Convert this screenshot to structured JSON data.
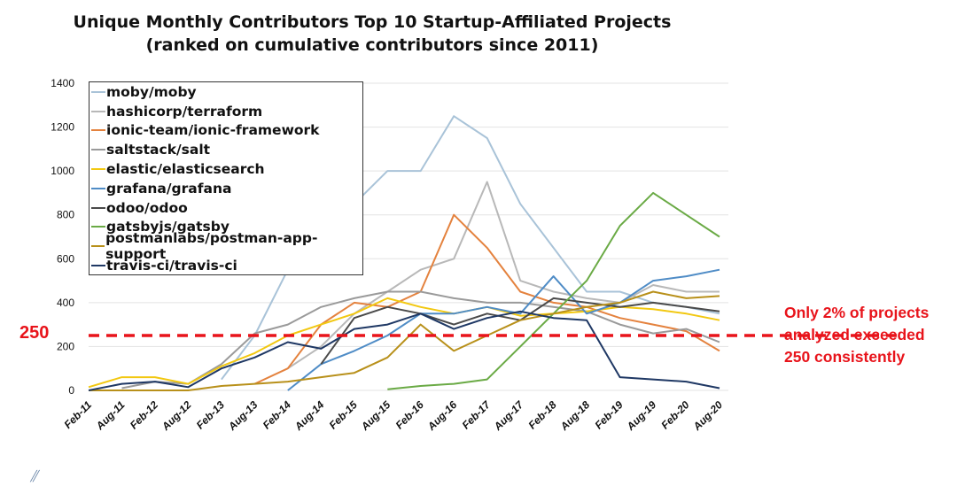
{
  "chart_data": {
    "type": "line",
    "title": "Unique Monthly Contributors Top 10 Startup-Affiliated Projects",
    "subtitle": "(ranked on cumulative contributors since 2011)",
    "xlabel": "",
    "ylabel": "",
    "ylim": [
      0,
      1400
    ],
    "yticks": [
      0,
      200,
      400,
      600,
      800,
      1000,
      1200,
      1400
    ],
    "grid": true,
    "legend_position": "top-left",
    "categories": [
      "Feb-11",
      "Aug-11",
      "Feb-12",
      "Aug-12",
      "Feb-13",
      "Aug-13",
      "Feb-14",
      "Aug-14",
      "Feb-15",
      "Aug-15",
      "Feb-16",
      "Aug-16",
      "Feb-17",
      "Aug-17",
      "Feb-18",
      "Aug-18",
      "Feb-19",
      "Aug-19",
      "Feb-20",
      "Aug-20"
    ],
    "series": [
      {
        "name": "moby/moby",
        "color": "#a9c3d8",
        "values": [
          null,
          null,
          null,
          null,
          50,
          250,
          550,
          650,
          850,
          1000,
          1000,
          1250,
          1150,
          850,
          650,
          450,
          450,
          400,
          380,
          350
        ]
      },
      {
        "name": "hashicorp/terraform",
        "color": "#b8b8b8",
        "values": [
          null,
          null,
          null,
          null,
          null,
          null,
          100,
          200,
          350,
          450,
          550,
          600,
          950,
          500,
          450,
          420,
          400,
          480,
          450,
          450
        ]
      },
      {
        "name": "ionic-team/ionic-framework",
        "color": "#e4823e",
        "values": [
          null,
          null,
          null,
          null,
          null,
          30,
          100,
          300,
          400,
          380,
          450,
          800,
          650,
          450,
          400,
          380,
          330,
          300,
          270,
          180
        ]
      },
      {
        "name": "saltstack/salt",
        "color": "#9a9a9a",
        "values": [
          null,
          10,
          40,
          30,
          120,
          260,
          300,
          380,
          420,
          450,
          450,
          420,
          400,
          400,
          380,
          360,
          300,
          260,
          280,
          220
        ]
      },
      {
        "name": "elastic/elasticsearch",
        "color": "#f2c811",
        "values": [
          15,
          60,
          60,
          30,
          110,
          170,
          250,
          300,
          350,
          420,
          380,
          350,
          380,
          340,
          350,
          360,
          380,
          370,
          350,
          320
        ]
      },
      {
        "name": "grafana/grafana",
        "color": "#4f8cc6",
        "values": [
          null,
          null,
          null,
          null,
          null,
          null,
          0,
          120,
          180,
          250,
          350,
          350,
          380,
          350,
          520,
          350,
          400,
          500,
          520,
          550
        ]
      },
      {
        "name": "odoo/odoo",
        "color": "#4a4a4a",
        "values": [
          null,
          null,
          null,
          null,
          null,
          null,
          null,
          120,
          330,
          380,
          350,
          300,
          350,
          320,
          420,
          400,
          380,
          400,
          380,
          360
        ]
      },
      {
        "name": "gatsbyjs/gatsby",
        "color": "#6aaa45",
        "values": [
          null,
          null,
          null,
          null,
          null,
          null,
          null,
          null,
          null,
          5,
          20,
          30,
          50,
          200,
          350,
          500,
          750,
          900,
          800,
          700
        ]
      },
      {
        "name": "postmanlabs/postman-app-support",
        "color": "#b8901a",
        "values": [
          0,
          0,
          0,
          0,
          20,
          30,
          40,
          60,
          80,
          150,
          300,
          180,
          250,
          320,
          350,
          380,
          400,
          450,
          420,
          430
        ]
      },
      {
        "name": "travis-ci/travis-ci",
        "color": "#1f3864",
        "values": [
          0,
          30,
          40,
          15,
          100,
          150,
          220,
          190,
          280,
          300,
          350,
          280,
          330,
          360,
          330,
          320,
          60,
          50,
          40,
          10
        ]
      }
    ],
    "threshold": {
      "value": 250,
      "label": "250",
      "color": "#e8141b"
    },
    "annotation": [
      "Only 2% of projects",
      "analyzed exceeded",
      "250 consistently"
    ]
  }
}
